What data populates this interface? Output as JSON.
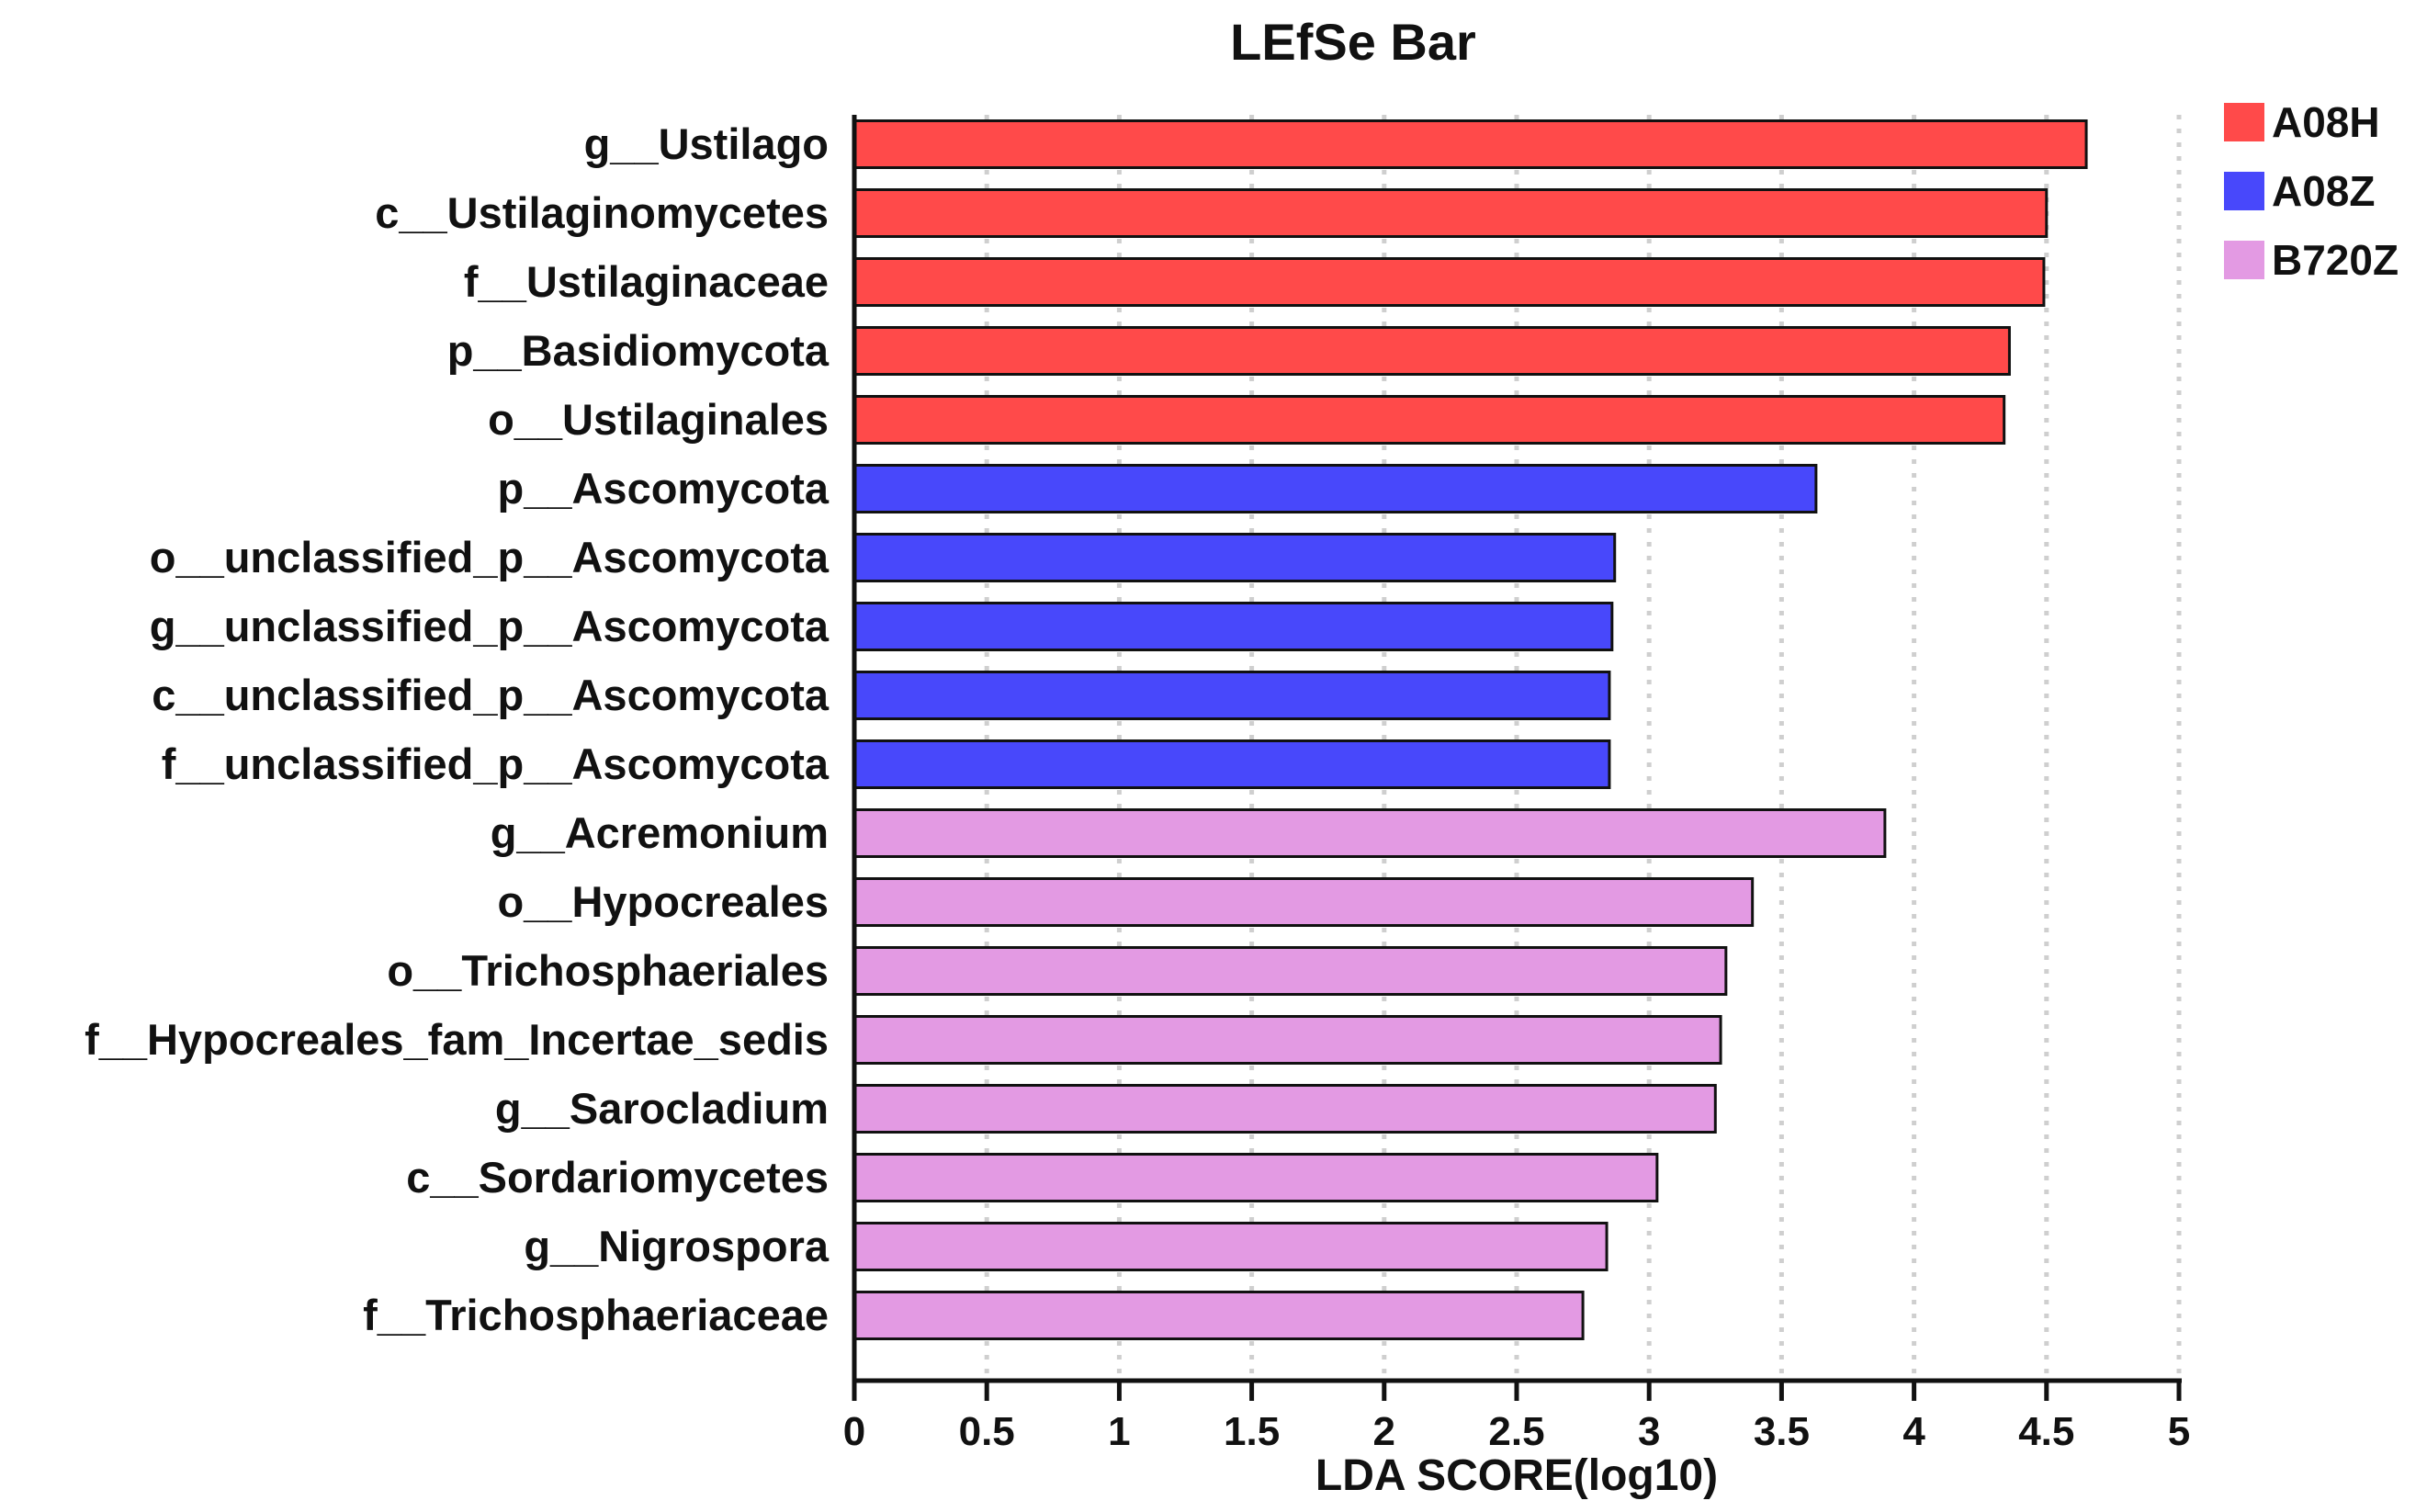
{
  "chart_data": {
    "type": "bar",
    "orientation": "horizontal",
    "title": "LEfSe Bar",
    "xlabel": "LDA SCORE(log10)",
    "ylabel": "",
    "xlim": [
      0,
      5
    ],
    "xticks": [
      "0",
      "0.5",
      "1",
      "1.5",
      "2",
      "2.5",
      "3",
      "3.5",
      "4",
      "4.5",
      "5"
    ],
    "grid": "vertical dotted",
    "legend_position": "top-right",
    "groups": [
      {
        "name": "A08H",
        "color": "#ff4a4a"
      },
      {
        "name": "A08Z",
        "color": "#4848fb"
      },
      {
        "name": "B720Z",
        "color": "#e39ae3"
      }
    ],
    "categories": [
      "g__Ustilago",
      "c__Ustilaginomycetes",
      "f__Ustilaginaceae",
      "p__Basidiomycota",
      "o__Ustilaginales",
      "p__Ascomycota",
      "o__unclassified_p__Ascomycota",
      "g__unclassified_p__Ascomycota",
      "c__unclassified_p__Ascomycota",
      "f__unclassified_p__Ascomycota",
      "g__Acremonium",
      "o__Hypocreales",
      "o__Trichosphaeriales",
      "f__Hypocreales_fam_Incertae_sedis",
      "g__Sarocladium",
      "c__Sordariomycetes",
      "g__Nigrospora",
      "f__Trichosphaeriaceae"
    ],
    "values": [
      4.65,
      4.5,
      4.49,
      4.36,
      4.34,
      3.63,
      2.87,
      2.86,
      2.85,
      2.85,
      3.89,
      3.39,
      3.29,
      3.27,
      3.25,
      3.03,
      2.84,
      2.75
    ],
    "group_of_bar": [
      "A08H",
      "A08H",
      "A08H",
      "A08H",
      "A08H",
      "A08Z",
      "A08Z",
      "A08Z",
      "A08Z",
      "A08Z",
      "B720Z",
      "B720Z",
      "B720Z",
      "B720Z",
      "B720Z",
      "B720Z",
      "B720Z",
      "B720Z"
    ]
  }
}
